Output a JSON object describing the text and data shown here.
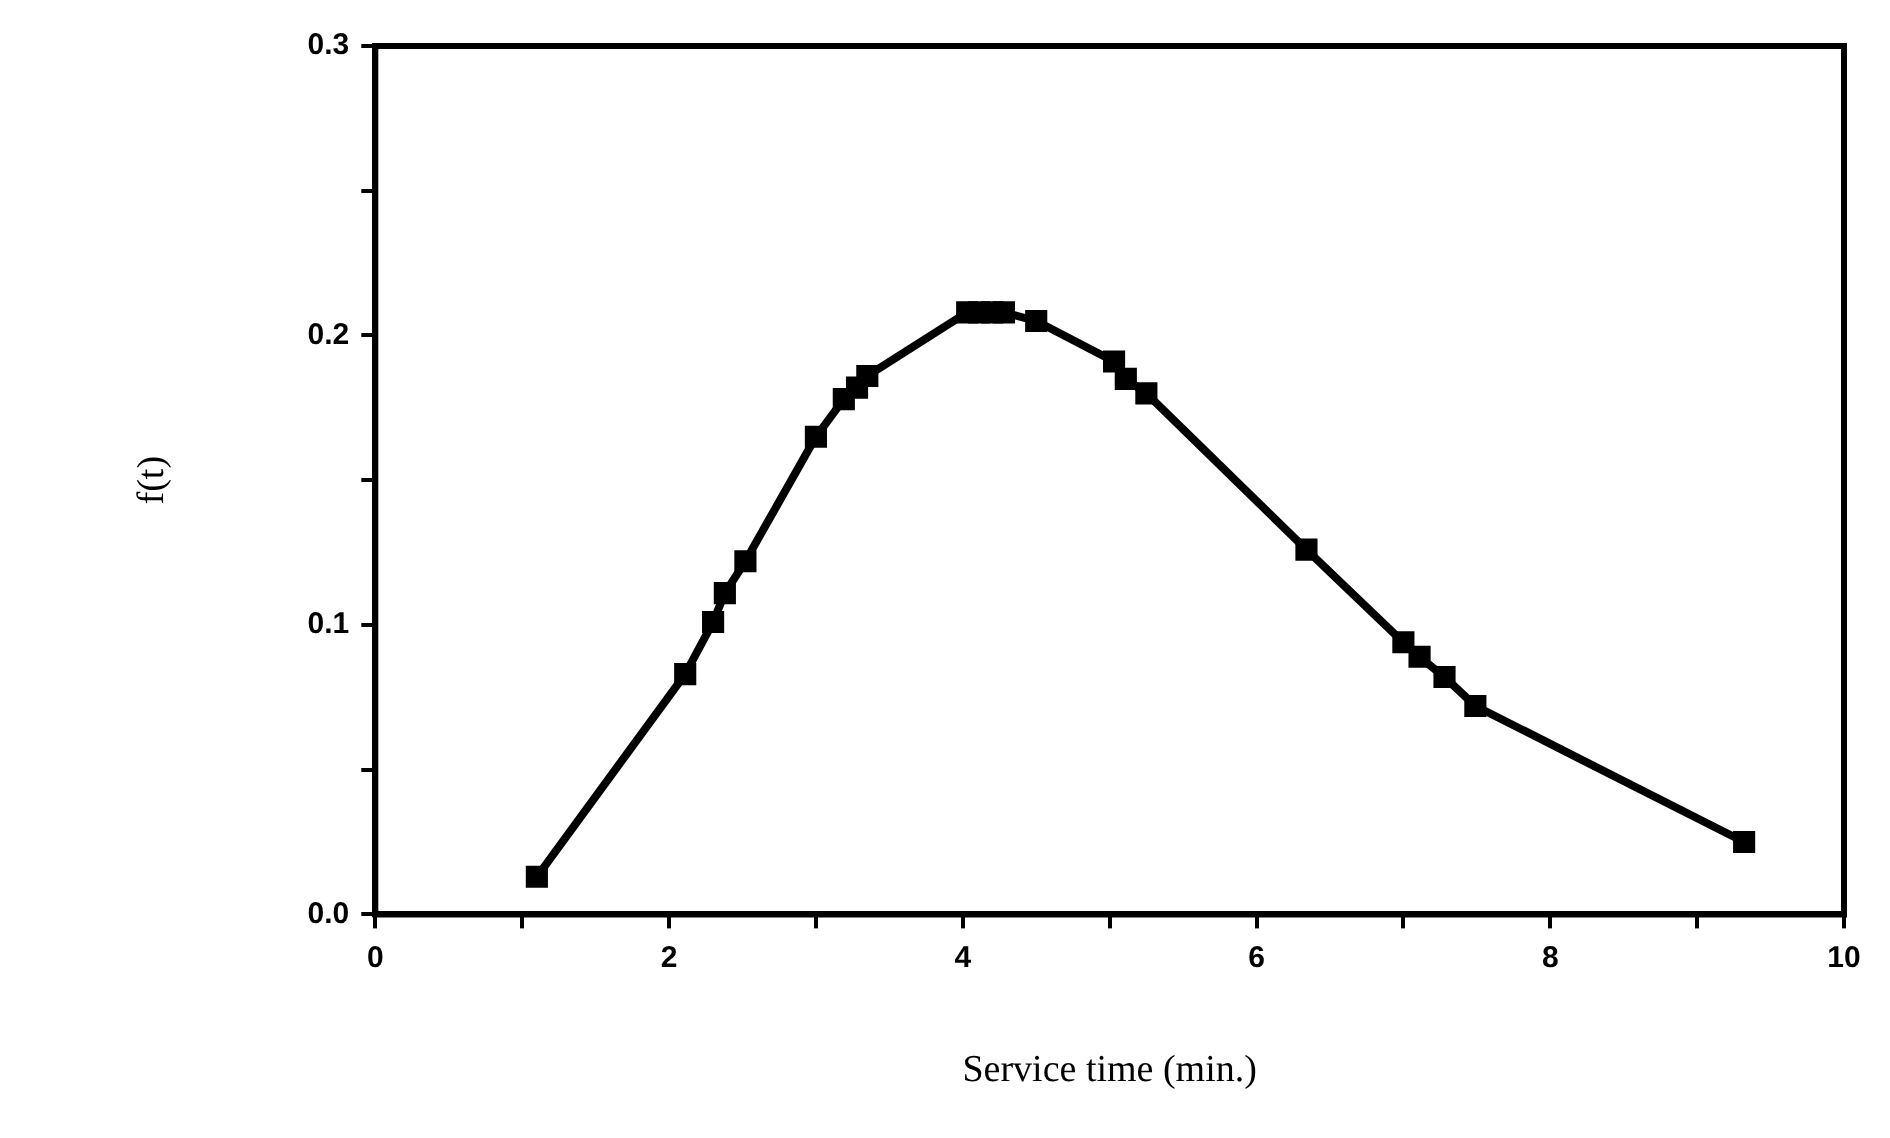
{
  "chart_data": {
    "type": "line",
    "xlabel": "Service time (min.)",
    "ylabel": "f(t)",
    "x": [
      1.1,
      2.11,
      2.3,
      2.38,
      2.52,
      3.0,
      3.19,
      3.28,
      3.35,
      4.03,
      4.11,
      4.2,
      4.28,
      4.5,
      5.03,
      5.11,
      5.25,
      6.34,
      7.0,
      7.11,
      7.28,
      7.49,
      9.32
    ],
    "series": [
      {
        "color": "#000000",
        "values": [
          0.013,
          0.083,
          0.101,
          0.111,
          0.122,
          0.165,
          0.178,
          0.182,
          0.186,
          0.208,
          0.208,
          0.208,
          0.208,
          0.205,
          0.191,
          0.185,
          0.18,
          0.126,
          0.094,
          0.089,
          0.082,
          0.072,
          0.025
        ]
      }
    ],
    "xlim": [
      0,
      10
    ],
    "xticks": [
      0,
      {
        "value": 1,
        "label": null
      },
      2,
      {
        "value": 3,
        "label": null
      },
      4,
      {
        "value": 5,
        "label": null
      },
      6,
      {
        "value": 7,
        "label": null
      },
      8,
      {
        "value": 9,
        "label": null
      },
      10
    ],
    "ylim": [
      0,
      0.3
    ],
    "yticks": [
      {
        "value": 0,
        "label": "0.0"
      },
      {
        "value": 0.05,
        "label": null
      },
      0.1,
      {
        "value": 0.15,
        "label": null
      },
      0.2,
      {
        "value": 0.25,
        "label": null
      },
      0.3
    ],
    "grid": false,
    "legend": false,
    "marker": "square",
    "line_style": "solid"
  }
}
